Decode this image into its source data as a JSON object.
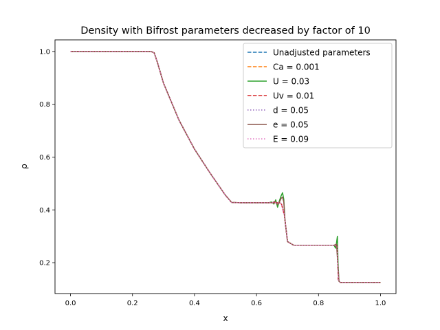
{
  "chart_data": {
    "type": "line",
    "title": "Density with Bifrost parameters decreased by factor of 10",
    "xlabel": "x",
    "ylabel": "ρ",
    "xlim": [
      -0.05,
      1.05
    ],
    "ylim": [
      0.083,
      1.044
    ],
    "xticks": [
      0.0,
      0.2,
      0.4,
      0.6,
      0.8,
      1.0
    ],
    "xtick_labels": [
      "0.0",
      "0.2",
      "0.4",
      "0.6",
      "0.8",
      "1.0"
    ],
    "yticks": [
      0.2,
      0.4,
      0.6,
      0.8,
      1.0
    ],
    "ytick_labels": [
      "0.2",
      "0.4",
      "0.6",
      "0.8",
      "1.0"
    ],
    "grid": false,
    "legend_position": "upper right",
    "base_profile": {
      "x": [
        0.0,
        0.26,
        0.27,
        0.28,
        0.3,
        0.35,
        0.4,
        0.45,
        0.5,
        0.52,
        0.55,
        0.6,
        0.65,
        0.67,
        0.68,
        0.69,
        0.7,
        0.72,
        0.75,
        0.8,
        0.85,
        0.86,
        0.862,
        0.864,
        0.87,
        0.9,
        0.95,
        1.0
      ],
      "y": [
        1.0,
        1.0,
        0.995,
        0.96,
        0.88,
        0.74,
        0.63,
        0.54,
        0.455,
        0.428,
        0.427,
        0.427,
        0.427,
        0.427,
        0.425,
        0.38,
        0.28,
        0.266,
        0.266,
        0.266,
        0.266,
        0.262,
        0.2,
        0.135,
        0.125,
        0.125,
        0.125,
        0.125
      ]
    },
    "series": [
      {
        "name": "Unadjusted parameters",
        "color": "#1f77b4",
        "style": "dashed",
        "x": [
          0.0,
          0.26,
          0.27,
          0.28,
          0.3,
          0.35,
          0.4,
          0.45,
          0.5,
          0.52,
          0.55,
          0.6,
          0.65,
          0.67,
          0.68,
          0.69,
          0.7,
          0.72,
          0.75,
          0.8,
          0.85,
          0.86,
          0.862,
          0.864,
          0.87,
          0.9,
          0.95,
          1.0
        ],
        "y": [
          1.0,
          1.0,
          0.995,
          0.96,
          0.88,
          0.74,
          0.63,
          0.54,
          0.455,
          0.428,
          0.427,
          0.427,
          0.427,
          0.427,
          0.425,
          0.38,
          0.28,
          0.266,
          0.266,
          0.266,
          0.266,
          0.262,
          0.2,
          0.135,
          0.125,
          0.125,
          0.125,
          0.125
        ]
      },
      {
        "name": "Ca = 0.001",
        "color": "#ff7f0e",
        "style": "dashed",
        "x": [
          0.0,
          0.26,
          0.27,
          0.28,
          0.3,
          0.35,
          0.4,
          0.45,
          0.5,
          0.52,
          0.55,
          0.6,
          0.65,
          0.67,
          0.68,
          0.69,
          0.7,
          0.72,
          0.75,
          0.8,
          0.85,
          0.86,
          0.862,
          0.864,
          0.87,
          0.9,
          0.95,
          1.0
        ],
        "y": [
          1.0,
          1.0,
          0.995,
          0.96,
          0.88,
          0.74,
          0.63,
          0.54,
          0.455,
          0.428,
          0.427,
          0.427,
          0.427,
          0.427,
          0.425,
          0.38,
          0.28,
          0.266,
          0.266,
          0.266,
          0.266,
          0.262,
          0.2,
          0.135,
          0.125,
          0.125,
          0.125,
          0.125
        ]
      },
      {
        "name": "U = 0.03",
        "color": "#2ca02c",
        "style": "solid",
        "x": [
          0.0,
          0.26,
          0.27,
          0.28,
          0.3,
          0.35,
          0.4,
          0.45,
          0.5,
          0.52,
          0.55,
          0.6,
          0.64,
          0.648,
          0.656,
          0.662,
          0.668,
          0.674,
          0.68,
          0.684,
          0.688,
          0.692,
          0.7,
          0.72,
          0.75,
          0.8,
          0.85,
          0.855,
          0.858,
          0.861,
          0.863,
          0.866,
          0.87,
          0.9,
          0.95,
          1.0
        ],
        "y": [
          1.0,
          1.0,
          0.995,
          0.96,
          0.88,
          0.74,
          0.63,
          0.54,
          0.455,
          0.428,
          0.427,
          0.427,
          0.427,
          0.43,
          0.422,
          0.438,
          0.41,
          0.435,
          0.455,
          0.465,
          0.44,
          0.36,
          0.28,
          0.266,
          0.266,
          0.266,
          0.266,
          0.255,
          0.275,
          0.3,
          0.2,
          0.13,
          0.125,
          0.125,
          0.125,
          0.125
        ]
      },
      {
        "name": "Uv = 0.01",
        "color": "#d62728",
        "style": "dashed",
        "x": [
          0.0,
          0.26,
          0.27,
          0.28,
          0.3,
          0.35,
          0.4,
          0.45,
          0.5,
          0.52,
          0.55,
          0.6,
          0.65,
          0.67,
          0.68,
          0.69,
          0.7,
          0.72,
          0.75,
          0.8,
          0.85,
          0.86,
          0.862,
          0.864,
          0.87,
          0.9,
          0.95,
          1.0
        ],
        "y": [
          1.0,
          1.0,
          0.995,
          0.96,
          0.88,
          0.74,
          0.63,
          0.54,
          0.455,
          0.428,
          0.427,
          0.427,
          0.427,
          0.427,
          0.425,
          0.38,
          0.28,
          0.266,
          0.266,
          0.266,
          0.266,
          0.262,
          0.2,
          0.135,
          0.125,
          0.125,
          0.125,
          0.125
        ]
      },
      {
        "name": "d = 0.05",
        "color": "#9467bd",
        "style": "dotted",
        "x": [
          0.0,
          0.26,
          0.27,
          0.28,
          0.3,
          0.35,
          0.4,
          0.45,
          0.5,
          0.52,
          0.55,
          0.6,
          0.65,
          0.67,
          0.68,
          0.69,
          0.7,
          0.72,
          0.75,
          0.8,
          0.85,
          0.86,
          0.862,
          0.864,
          0.87,
          0.9,
          0.95,
          1.0
        ],
        "y": [
          1.0,
          1.0,
          0.995,
          0.96,
          0.88,
          0.74,
          0.63,
          0.54,
          0.455,
          0.428,
          0.427,
          0.427,
          0.427,
          0.427,
          0.425,
          0.38,
          0.28,
          0.266,
          0.266,
          0.266,
          0.266,
          0.262,
          0.2,
          0.135,
          0.125,
          0.125,
          0.125,
          0.125
        ]
      },
      {
        "name": "e = 0.05",
        "color": "#8c564b",
        "style": "solid",
        "x": [
          0.0,
          0.26,
          0.27,
          0.28,
          0.3,
          0.35,
          0.4,
          0.45,
          0.5,
          0.52,
          0.55,
          0.6,
          0.65,
          0.66,
          0.668,
          0.674,
          0.68,
          0.684,
          0.688,
          0.692,
          0.7,
          0.72,
          0.75,
          0.8,
          0.85,
          0.858,
          0.862,
          0.866,
          0.87,
          0.9,
          0.95,
          1.0
        ],
        "y": [
          1.0,
          1.0,
          0.995,
          0.96,
          0.88,
          0.74,
          0.63,
          0.54,
          0.455,
          0.428,
          0.427,
          0.427,
          0.427,
          0.432,
          0.42,
          0.43,
          0.445,
          0.448,
          0.43,
          0.36,
          0.28,
          0.266,
          0.266,
          0.266,
          0.266,
          0.27,
          0.2,
          0.13,
          0.125,
          0.125,
          0.125,
          0.125
        ]
      },
      {
        "name": "E = 0.09",
        "color": "#e377c2",
        "style": "dotted",
        "x": [
          0.0,
          0.26,
          0.27,
          0.28,
          0.3,
          0.35,
          0.4,
          0.45,
          0.5,
          0.52,
          0.55,
          0.6,
          0.65,
          0.67,
          0.68,
          0.69,
          0.7,
          0.72,
          0.75,
          0.8,
          0.85,
          0.86,
          0.862,
          0.864,
          0.87,
          0.9,
          0.95,
          1.0
        ],
        "y": [
          1.0,
          1.0,
          0.995,
          0.96,
          0.88,
          0.74,
          0.63,
          0.54,
          0.455,
          0.428,
          0.427,
          0.427,
          0.427,
          0.427,
          0.425,
          0.38,
          0.28,
          0.266,
          0.266,
          0.266,
          0.266,
          0.262,
          0.2,
          0.135,
          0.125,
          0.125,
          0.125,
          0.125
        ]
      }
    ]
  }
}
